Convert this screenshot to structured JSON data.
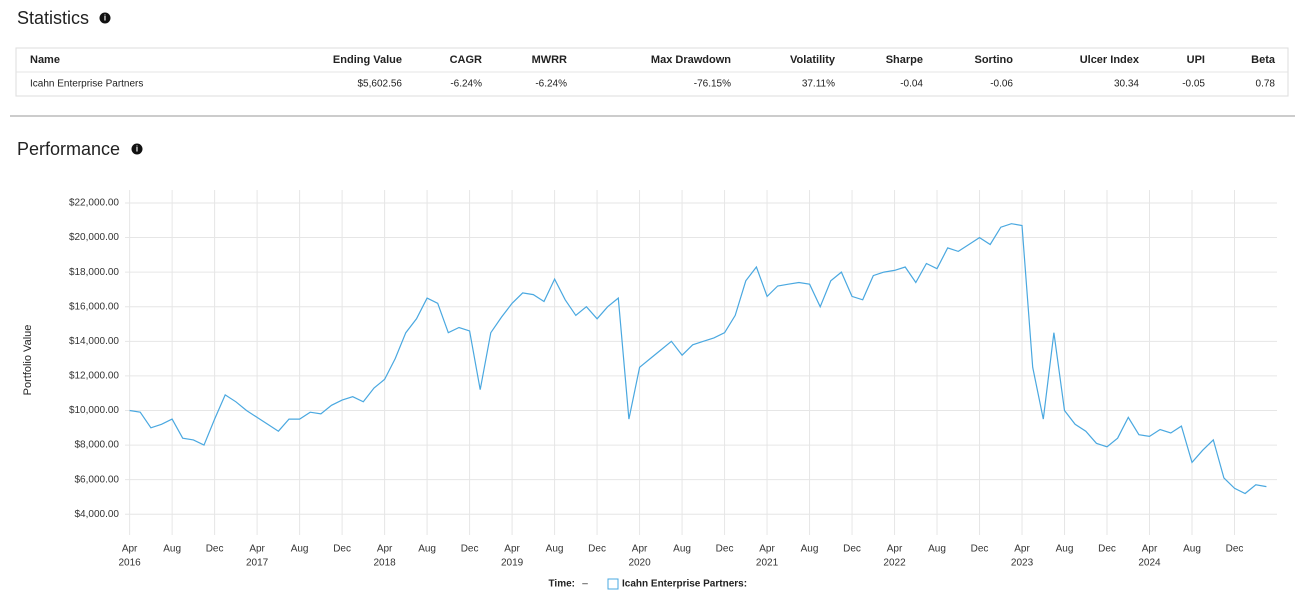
{
  "statistics": {
    "title": "Statistics",
    "headers": [
      "Name",
      "Ending Value",
      "CAGR",
      "MWRR",
      "Max Drawdown",
      "Volatility",
      "Sharpe",
      "Sortino",
      "Ulcer Index",
      "UPI",
      "Beta"
    ],
    "rows": [
      [
        "Icahn Enterprise Partners",
        "$5,602.56",
        "-6.24%",
        "-6.24%",
        "-76.15%",
        "37.11%",
        "-0.04",
        "-0.06",
        "30.34",
        "-0.05",
        "0.78"
      ]
    ]
  },
  "performance_title": "Performance",
  "chart_data": {
    "type": "line",
    "y_label": "Portfolio Value",
    "x": [
      "2016-04",
      "2016-05",
      "2016-06",
      "2016-07",
      "2016-08",
      "2016-09",
      "2016-10",
      "2016-11",
      "2016-12",
      "2017-01",
      "2017-02",
      "2017-03",
      "2017-04",
      "2017-05",
      "2017-06",
      "2017-07",
      "2017-08",
      "2017-09",
      "2017-10",
      "2017-11",
      "2017-12",
      "2018-01",
      "2018-02",
      "2018-03",
      "2018-04",
      "2018-05",
      "2018-06",
      "2018-07",
      "2018-08",
      "2018-09",
      "2018-10",
      "2018-11",
      "2018-12",
      "2019-01",
      "2019-02",
      "2019-03",
      "2019-04",
      "2019-05",
      "2019-06",
      "2019-07",
      "2019-08",
      "2019-09",
      "2019-10",
      "2019-11",
      "2019-12",
      "2020-01",
      "2020-02",
      "2020-03",
      "2020-04",
      "2020-05",
      "2020-06",
      "2020-07",
      "2020-08",
      "2020-09",
      "2020-10",
      "2020-11",
      "2020-12",
      "2021-01",
      "2021-02",
      "2021-03",
      "2021-04",
      "2021-05",
      "2021-06",
      "2021-07",
      "2021-08",
      "2021-09",
      "2021-10",
      "2021-11",
      "2021-12",
      "2022-01",
      "2022-02",
      "2022-03",
      "2022-04",
      "2022-05",
      "2022-06",
      "2022-07",
      "2022-08",
      "2022-09",
      "2022-10",
      "2022-11",
      "2022-12",
      "2023-01",
      "2023-02",
      "2023-03",
      "2023-04",
      "2023-05",
      "2023-06",
      "2023-07",
      "2023-08",
      "2023-09",
      "2023-10",
      "2023-11",
      "2023-12",
      "2024-01",
      "2024-02",
      "2024-03",
      "2024-04",
      "2024-05",
      "2024-06",
      "2024-07",
      "2024-08",
      "2024-09",
      "2024-10",
      "2024-11",
      "2024-12",
      "2025-01",
      "2025-02",
      "2025-03"
    ],
    "series": [
      {
        "name": "Icahn Enterprise Partners:",
        "color": "#4aa8e0",
        "values": [
          10000,
          9900,
          9000,
          9200,
          9500,
          8400,
          8300,
          8000,
          9500,
          10900,
          10500,
          10000,
          9600,
          9200,
          8800,
          9500,
          9500,
          9900,
          9800,
          10300,
          10600,
          10800,
          10500,
          11300,
          11800,
          13000,
          14500,
          15300,
          16500,
          16200,
          14500,
          14800,
          14600,
          11200,
          14500,
          15400,
          16200,
          16800,
          16700,
          16300,
          17600,
          16400,
          15500,
          16000,
          15300,
          16000,
          16500,
          9500,
          12500,
          13000,
          13500,
          14000,
          13200,
          13800,
          14000,
          14200,
          14500,
          15500,
          17500,
          18300,
          16600,
          17200,
          17300,
          17400,
          17300,
          16000,
          17500,
          18000,
          16600,
          16400,
          17800,
          18000,
          18100,
          18300,
          17400,
          18500,
          18200,
          19400,
          19200,
          19600,
          20000,
          19600,
          20600,
          20800,
          20700,
          12500,
          9500,
          14500,
          10000,
          9200,
          8800,
          8100,
          7900,
          8400,
          9600,
          8600,
          8500,
          8900,
          8700,
          9100,
          7000,
          7700,
          8300,
          6100,
          5500,
          5200,
          5700,
          5600
        ]
      }
    ],
    "xlim": [
      "2016-03",
      "2025-04"
    ],
    "xticks": [
      {
        "value": "2016-04",
        "label": "Apr"
      },
      {
        "value": "2016-08",
        "label": "Aug"
      },
      {
        "value": "2016-12",
        "label": "Dec"
      },
      {
        "value": "2017-04",
        "label": "Apr"
      },
      {
        "value": "2017-08",
        "label": "Aug"
      },
      {
        "value": "2017-12",
        "label": "Dec"
      },
      {
        "value": "2018-04",
        "label": "Apr"
      },
      {
        "value": "2018-08",
        "label": "Aug"
      },
      {
        "value": "2018-12",
        "label": "Dec"
      },
      {
        "value": "2019-04",
        "label": "Apr"
      },
      {
        "value": "2019-08",
        "label": "Aug"
      },
      {
        "value": "2019-12",
        "label": "Dec"
      },
      {
        "value": "2020-04",
        "label": "Apr"
      },
      {
        "value": "2020-08",
        "label": "Aug"
      },
      {
        "value": "2020-12",
        "label": "Dec"
      },
      {
        "value": "2021-04",
        "label": "Apr"
      },
      {
        "value": "2021-08",
        "label": "Aug"
      },
      {
        "value": "2021-12",
        "label": "Dec"
      },
      {
        "value": "2022-04",
        "label": "Apr"
      },
      {
        "value": "2022-08",
        "label": "Aug"
      },
      {
        "value": "2022-12",
        "label": "Dec"
      },
      {
        "value": "2023-04",
        "label": "Apr"
      },
      {
        "value": "2023-08",
        "label": "Aug"
      },
      {
        "value": "2023-12",
        "label": "Dec"
      },
      {
        "value": "2024-04",
        "label": "Apr"
      },
      {
        "value": "2024-08",
        "label": "Aug"
      },
      {
        "value": "2024-12",
        "label": "Dec"
      }
    ],
    "xyears": [
      {
        "value": "2016-04",
        "label": "2016"
      },
      {
        "value": "2017-04",
        "label": "2017"
      },
      {
        "value": "2018-04",
        "label": "2018"
      },
      {
        "value": "2019-04",
        "label": "2019"
      },
      {
        "value": "2020-04",
        "label": "2020"
      },
      {
        "value": "2021-04",
        "label": "2021"
      },
      {
        "value": "2022-04",
        "label": "2022"
      },
      {
        "value": "2023-04",
        "label": "2023"
      },
      {
        "value": "2024-04",
        "label": "2024"
      }
    ],
    "ylim": [
      2800,
      22750
    ],
    "yticks": [
      {
        "value": 4000,
        "label": "$4,000.00"
      },
      {
        "value": 6000,
        "label": "$6,000.00"
      },
      {
        "value": 8000,
        "label": "$8,000.00"
      },
      {
        "value": 10000,
        "label": "$10,000.00"
      },
      {
        "value": 12000,
        "label": "$12,000.00"
      },
      {
        "value": 14000,
        "label": "$14,000.00"
      },
      {
        "value": 16000,
        "label": "$16,000.00"
      },
      {
        "value": 18000,
        "label": "$18,000.00"
      },
      {
        "value": 20000,
        "label": "$20,000.00"
      },
      {
        "value": 22000,
        "label": "$22,000.00"
      }
    ],
    "grid": true,
    "legend": {
      "time_label": "Time:",
      "time_value": "–"
    }
  }
}
